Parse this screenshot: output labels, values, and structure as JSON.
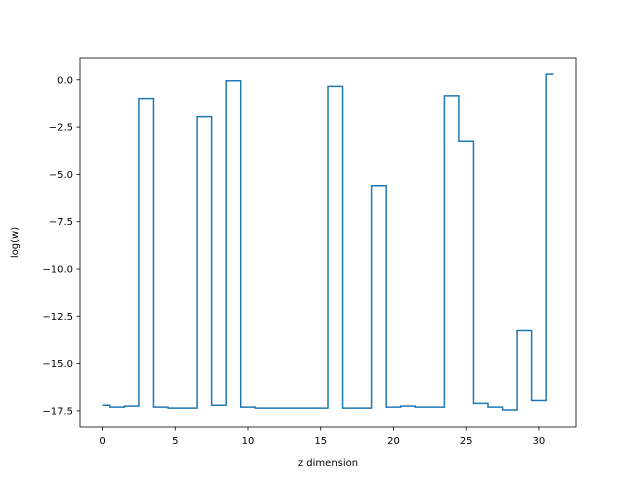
{
  "chart_data": {
    "type": "line",
    "drawstyle": "steps-mid",
    "xlabel": "z dimension",
    "ylabel": "log(w)",
    "xlim": [
      -1.55,
      32.55
    ],
    "ylim": [
      -18.35,
      1.15
    ],
    "xticks": [
      0,
      5,
      10,
      15,
      20,
      25,
      30
    ],
    "xtick_labels": [
      "0",
      "5",
      "10",
      "15",
      "20",
      "25",
      "30"
    ],
    "yticks": [
      0.0,
      -2.5,
      -5.0,
      -7.5,
      -10.0,
      -12.5,
      -15.0,
      -17.5
    ],
    "ytick_labels": [
      "0.0",
      "−2.5",
      "−5.0",
      "−7.5",
      "−10.0",
      "−12.5",
      "−15.0",
      "−17.5"
    ],
    "grid": false,
    "series": [
      {
        "color": "#1f77b4",
        "x": [
          0,
          1,
          2,
          3,
          4,
          5,
          6,
          7,
          8,
          9,
          10,
          11,
          12,
          13,
          14,
          15,
          16,
          17,
          18,
          19,
          20,
          21,
          22,
          23,
          24,
          25,
          26,
          27,
          28,
          29,
          30,
          31
        ],
        "y": [
          -17.2,
          -17.3,
          -17.25,
          -1.0,
          -17.3,
          -17.35,
          -17.35,
          -1.95,
          -17.2,
          -0.05,
          -17.3,
          -17.35,
          -17.35,
          -17.35,
          -17.35,
          -17.35,
          -0.35,
          -17.35,
          -17.35,
          -5.6,
          -17.3,
          -17.25,
          -17.3,
          -17.3,
          -0.85,
          -3.25,
          -17.1,
          -17.3,
          -17.45,
          -13.25,
          -16.95,
          0.3
        ]
      }
    ]
  }
}
